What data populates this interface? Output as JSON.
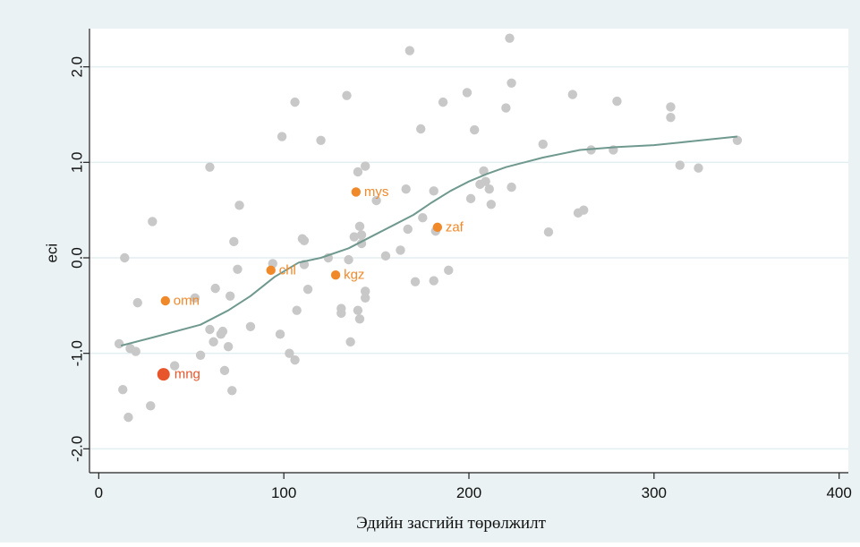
{
  "chart_data": {
    "type": "scatter",
    "title": "",
    "xlabel": "Эдийн засгийн төрөлжилт",
    "ylabel": "eci",
    "xlim": [
      -5,
      405
    ],
    "ylim": [
      -2.25,
      2.4
    ],
    "x_ticks": [
      0,
      100,
      200,
      300,
      400
    ],
    "x_tick_labels": [
      "0",
      "100",
      "200",
      "300",
      "400"
    ],
    "y_ticks": [
      -2,
      -1,
      0,
      1,
      2
    ],
    "y_tick_labels": [
      "-2.0",
      "-1.0",
      "0.0",
      "1.0",
      "2.0"
    ],
    "grid": true,
    "colors": {
      "plot_background": "#ffffff",
      "outer_background": "#eaf2f3",
      "gridline": "#e3eef0",
      "points": "#c8c8c8",
      "highlight": "#f0892a",
      "mongolia": "#e8552a",
      "fit_line": "#6f998f",
      "axis": "#222222"
    },
    "series": [
      {
        "type": "scatter",
        "points": [
          [
            11,
            -0.9
          ],
          [
            13,
            -1.38
          ],
          [
            14,
            0.0
          ],
          [
            16,
            -1.67
          ],
          [
            17,
            -0.95
          ],
          [
            20,
            -0.98
          ],
          [
            21,
            -0.47
          ],
          [
            28,
            -1.55
          ],
          [
            29,
            0.38
          ],
          [
            41,
            -1.13
          ],
          [
            52,
            -0.42
          ],
          [
            55,
            -1.02
          ],
          [
            60,
            -0.75
          ],
          [
            60,
            0.95
          ],
          [
            62,
            -0.88
          ],
          [
            63,
            -0.32
          ],
          [
            66,
            -0.8
          ],
          [
            67,
            -0.77
          ],
          [
            68,
            -1.18
          ],
          [
            70,
            -0.93
          ],
          [
            71,
            -0.4
          ],
          [
            72,
            -1.39
          ],
          [
            73,
            0.17
          ],
          [
            75,
            -0.12
          ],
          [
            76,
            0.55
          ],
          [
            82,
            -0.72
          ],
          [
            94,
            -0.06
          ],
          [
            98,
            -0.8
          ],
          [
            99,
            1.27
          ],
          [
            103,
            -1.0
          ],
          [
            106,
            1.63
          ],
          [
            106,
            -1.07
          ],
          [
            107,
            -0.55
          ],
          [
            110,
            0.2
          ],
          [
            111,
            0.18
          ],
          [
            111,
            -0.07
          ],
          [
            113,
            -0.33
          ],
          [
            120,
            1.23
          ],
          [
            124,
            0.0
          ],
          [
            131,
            -0.53
          ],
          [
            131,
            -0.58
          ],
          [
            134,
            1.7
          ],
          [
            135,
            -0.02
          ],
          [
            136,
            -0.88
          ],
          [
            138,
            0.22
          ],
          [
            140,
            -0.55
          ],
          [
            140,
            0.9
          ],
          [
            141,
            0.33
          ],
          [
            141,
            -0.64
          ],
          [
            142,
            0.24
          ],
          [
            142,
            0.15
          ],
          [
            144,
            0.96
          ],
          [
            144,
            -0.35
          ],
          [
            144,
            -0.42
          ],
          [
            150,
            0.6
          ],
          [
            155,
            0.02
          ],
          [
            163,
            0.08
          ],
          [
            166,
            0.72
          ],
          [
            167,
            0.3
          ],
          [
            168,
            2.17
          ],
          [
            171,
            -0.25
          ],
          [
            174,
            1.35
          ],
          [
            175,
            0.42
          ],
          [
            181,
            0.7
          ],
          [
            181,
            -0.24
          ],
          [
            182,
            0.28
          ],
          [
            186,
            1.63
          ],
          [
            189,
            -0.13
          ],
          [
            199,
            1.73
          ],
          [
            201,
            0.62
          ],
          [
            203,
            1.34
          ],
          [
            206,
            0.77
          ],
          [
            208,
            0.91
          ],
          [
            209,
            0.8
          ],
          [
            211,
            0.72
          ],
          [
            212,
            0.56
          ],
          [
            220,
            1.57
          ],
          [
            222,
            2.3
          ],
          [
            223,
            1.83
          ],
          [
            223,
            0.74
          ],
          [
            240,
            1.19
          ],
          [
            243,
            0.27
          ],
          [
            256,
            1.71
          ],
          [
            259,
            0.47
          ],
          [
            262,
            0.5
          ],
          [
            266,
            1.13
          ],
          [
            278,
            1.13
          ],
          [
            280,
            1.64
          ],
          [
            309,
            1.58
          ],
          [
            309,
            1.47
          ],
          [
            314,
            0.97
          ],
          [
            324,
            0.94
          ],
          [
            345,
            1.23
          ]
        ]
      },
      {
        "type": "line",
        "points": [
          [
            12,
            -0.92
          ],
          [
            30,
            -0.83
          ],
          [
            55,
            -0.7
          ],
          [
            70,
            -0.55
          ],
          [
            82,
            -0.4
          ],
          [
            95,
            -0.2
          ],
          [
            108,
            -0.05
          ],
          [
            120,
            0.0
          ],
          [
            135,
            0.1
          ],
          [
            150,
            0.25
          ],
          [
            160,
            0.35
          ],
          [
            170,
            0.45
          ],
          [
            180,
            0.58
          ],
          [
            190,
            0.7
          ],
          [
            200,
            0.8
          ],
          [
            210,
            0.88
          ],
          [
            220,
            0.95
          ],
          [
            240,
            1.05
          ],
          [
            260,
            1.13
          ],
          [
            280,
            1.16
          ],
          [
            300,
            1.18
          ],
          [
            320,
            1.22
          ],
          [
            345,
            1.27
          ]
        ]
      }
    ],
    "labeled_points": [
      {
        "label": "mys",
        "x": 139,
        "y": 0.69
      },
      {
        "label": "zaf",
        "x": 183,
        "y": 0.32
      },
      {
        "label": "chl",
        "x": 93,
        "y": -0.13
      },
      {
        "label": "kgz",
        "x": 128,
        "y": -0.18
      },
      {
        "label": "omn",
        "x": 36,
        "y": -0.45
      },
      {
        "label": "mng",
        "x": 35,
        "y": -1.22,
        "emphasis": true
      }
    ]
  }
}
